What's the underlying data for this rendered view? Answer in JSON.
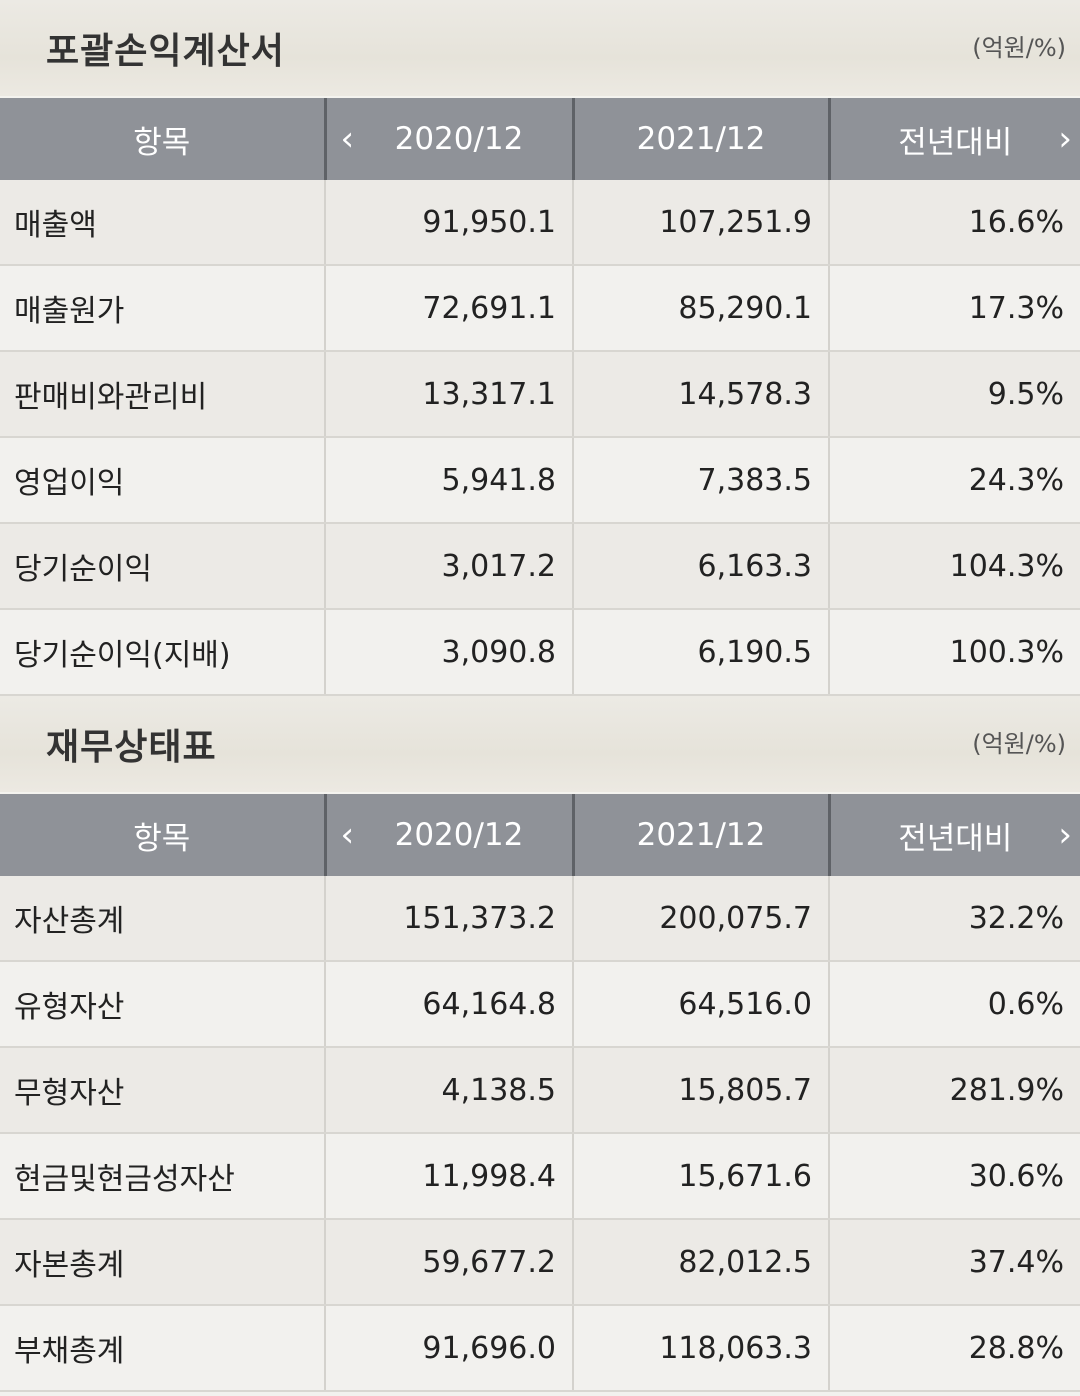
{
  "income_statement": {
    "title": "포괄손익계산서",
    "unit": "(억원/%)",
    "headers": {
      "item": "항목",
      "year1": "2020/12",
      "year2": "2021/12",
      "yoy": "전년대비"
    },
    "rows": [
      {
        "label": "매출액",
        "y2020": "91,950.1",
        "y2021": "107,251.9",
        "yoy": "16.6%"
      },
      {
        "label": "매출원가",
        "y2020": "72,691.1",
        "y2021": "85,290.1",
        "yoy": "17.3%"
      },
      {
        "label": "판매비와관리비",
        "y2020": "13,317.1",
        "y2021": "14,578.3",
        "yoy": "9.5%"
      },
      {
        "label": "영업이익",
        "y2020": "5,941.8",
        "y2021": "7,383.5",
        "yoy": "24.3%"
      },
      {
        "label": "당기순이익",
        "y2020": "3,017.2",
        "y2021": "6,163.3",
        "yoy": "104.3%"
      },
      {
        "label": "당기순이익(지배)",
        "y2020": "3,090.8",
        "y2021": "6,190.5",
        "yoy": "100.3%"
      }
    ]
  },
  "balance_sheet": {
    "title": "재무상태표",
    "unit": "(억원/%)",
    "headers": {
      "item": "항목",
      "year1": "2020/12",
      "year2": "2021/12",
      "yoy": "전년대비"
    },
    "rows": [
      {
        "label": "자산총계",
        "y2020": "151,373.2",
        "y2021": "200,075.7",
        "yoy": "32.2%"
      },
      {
        "label": "유형자산",
        "y2020": "64,164.8",
        "y2021": "64,516.0",
        "yoy": "0.6%"
      },
      {
        "label": "무형자산",
        "y2020": "4,138.5",
        "y2021": "15,805.7",
        "yoy": "281.9%"
      },
      {
        "label": "현금및현금성자산",
        "y2020": "11,998.4",
        "y2021": "15,671.6",
        "yoy": "30.6%"
      },
      {
        "label": "자본총계",
        "y2020": "59,677.2",
        "y2021": "82,012.5",
        "yoy": "37.4%"
      },
      {
        "label": "부채총계",
        "y2020": "91,696.0",
        "y2021": "118,063.3",
        "yoy": "28.8%"
      }
    ]
  },
  "icons": {
    "prev": "chevron-left-icon",
    "next": "chevron-right-icon"
  }
}
